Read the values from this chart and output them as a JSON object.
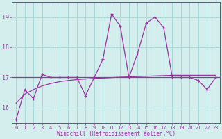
{
  "x": [
    0,
    1,
    2,
    3,
    4,
    5,
    6,
    7,
    8,
    9,
    10,
    11,
    12,
    13,
    14,
    15,
    16,
    17,
    18,
    19,
    20,
    21,
    22,
    23
  ],
  "line_main": [
    15.6,
    16.6,
    16.3,
    17.1,
    17.0,
    17.0,
    17.0,
    17.0,
    16.4,
    17.0,
    17.6,
    19.1,
    18.7,
    17.0,
    17.8,
    18.8,
    19.0,
    18.65,
    17.0,
    17.0,
    17.0,
    16.9,
    16.6,
    17.0
  ],
  "line_regression": [
    16.15,
    16.45,
    16.6,
    16.72,
    16.8,
    16.86,
    16.9,
    16.93,
    16.95,
    16.97,
    16.98,
    16.995,
    17.01,
    17.02,
    17.03,
    17.04,
    17.05,
    17.06,
    17.07,
    17.07,
    17.07,
    17.07,
    17.07,
    17.07
  ],
  "line_avg": 17.0,
  "line_color": "#9B30A0",
  "bg_color": "#d4eeee",
  "grid_color": "#a8d8d8",
  "xlabel": "Windchill (Refroidissement éolien,°C)",
  "ylim": [
    15.5,
    19.5
  ],
  "xlim": [
    -0.5,
    23.5
  ],
  "yticks": [
    16,
    17,
    18,
    19
  ],
  "xticks": [
    0,
    1,
    2,
    3,
    4,
    5,
    6,
    7,
    8,
    9,
    10,
    11,
    12,
    13,
    14,
    15,
    16,
    17,
    18,
    19,
    20,
    21,
    22,
    23
  ]
}
